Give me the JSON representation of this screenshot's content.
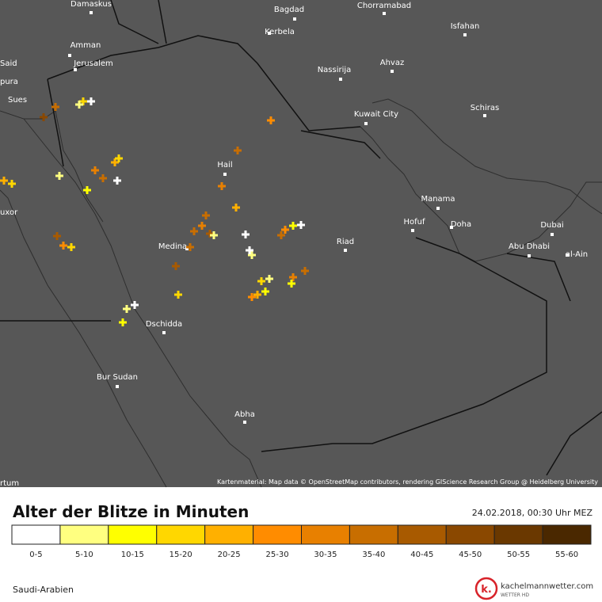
{
  "map": {
    "cities": [
      "Damaskus",
      "Bagdad",
      "Chorramabad",
      "Kerbela",
      "Isfahan",
      "Amman",
      "Said",
      "Jerusalem",
      "pura",
      "Ahvaz",
      "Nassirija",
      "Sues",
      "Schiras",
      "Kuwait City",
      "Hail",
      "Manama",
      "uxor",
      "Hofuf",
      "Doha",
      "Dubai",
      "Riad",
      "Medina",
      "Abu Dhabi",
      "al-Ain",
      "Dschidda",
      "Bur Sudan",
      "Abha",
      "rtum"
    ],
    "attribution": "Kartenmaterial: Map data © OpenStreetMap contributors, rendering GIScience Research Group @ Heidelberg University"
  },
  "legend": {
    "title": "Alter der Blitze in Minuten",
    "timestamp": "24.02.2018, 00:30 Uhr MEZ",
    "items": [
      {
        "label": "0-5",
        "color": "#ffffff"
      },
      {
        "label": "5-10",
        "color": "#ffff80"
      },
      {
        "label": "10-15",
        "color": "#ffff00"
      },
      {
        "label": "15-20",
        "color": "#ffd700"
      },
      {
        "label": "20-25",
        "color": "#ffb000"
      },
      {
        "label": "25-30",
        "color": "#ff8c00"
      },
      {
        "label": "30-35",
        "color": "#e88000"
      },
      {
        "label": "35-40",
        "color": "#c86e00"
      },
      {
        "label": "40-45",
        "color": "#a85a00"
      },
      {
        "label": "45-50",
        "color": "#8a4800"
      },
      {
        "label": "50-55",
        "color": "#6a3800"
      },
      {
        "label": "55-60",
        "color": "#4a2800"
      }
    ]
  },
  "footer": {
    "region": "Saudi-Arabien",
    "logo_mark": "k.",
    "logo_name": "kachelmannwetter.com",
    "logo_sub": "WETTER HD"
  }
}
